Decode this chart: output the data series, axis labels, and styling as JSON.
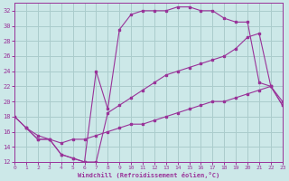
{
  "xlabel": "Windchill (Refroidissement éolien,°C)",
  "bg_color": "#cce8e8",
  "grid_color": "#aacccc",
  "line_color": "#993399",
  "xlim": [
    0,
    23
  ],
  "ylim": [
    12,
    33
  ],
  "xticks": [
    0,
    1,
    2,
    3,
    4,
    5,
    6,
    7,
    8,
    9,
    10,
    11,
    12,
    13,
    14,
    15,
    16,
    17,
    18,
    19,
    20,
    21,
    22,
    23
  ],
  "yticks": [
    12,
    14,
    16,
    18,
    20,
    22,
    24,
    26,
    28,
    30,
    32
  ],
  "line1_x": [
    0,
    1,
    2,
    3,
    4,
    5,
    6,
    7,
    8,
    9,
    10,
    11,
    12,
    13,
    14,
    15,
    16,
    17,
    18,
    19,
    20,
    21,
    22,
    23
  ],
  "line1_y": [
    18,
    16.5,
    15,
    15,
    13,
    12.5,
    12,
    12,
    18.5,
    19.5,
    20.5,
    21.5,
    22.5,
    23.5,
    24,
    24.5,
    25,
    25.5,
    26,
    27,
    28.5,
    29,
    22,
    19.5
  ],
  "line2_x": [
    0,
    1,
    2,
    3,
    4,
    5,
    6,
    7,
    8,
    9,
    10,
    11,
    12,
    13,
    14,
    15,
    16,
    17,
    18,
    19,
    20,
    21,
    22,
    23
  ],
  "line2_y": [
    18,
    16.5,
    15,
    15,
    13,
    12.5,
    12,
    24,
    19,
    29.5,
    31.5,
    32,
    32,
    32,
    32.5,
    32.5,
    32,
    32,
    31,
    30.5,
    30.5,
    22.5,
    22,
    19.5
  ],
  "line3_x": [
    1,
    2,
    3,
    4,
    5,
    6,
    7,
    8,
    9,
    10,
    11,
    12,
    13,
    14,
    15,
    16,
    17,
    18,
    19,
    20,
    21,
    22,
    23
  ],
  "line3_y": [
    16.5,
    15.5,
    15,
    14.5,
    15,
    15,
    15.5,
    16,
    16.5,
    17,
    17,
    17.5,
    18,
    18.5,
    19,
    19.5,
    20,
    20,
    20.5,
    21,
    21.5,
    22,
    20
  ]
}
